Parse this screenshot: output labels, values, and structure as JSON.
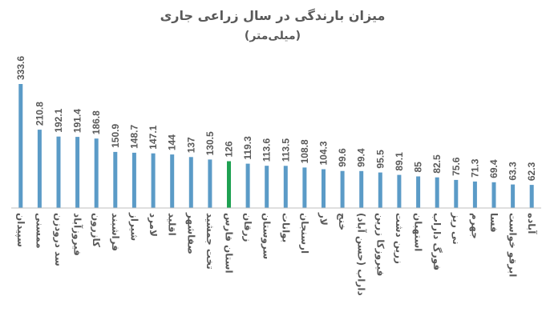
{
  "chart_data": {
    "type": "bar",
    "title": "میزان بارندگی در سال زراعی جاری",
    "subtitle": "(میلی‌متر)",
    "categories": [
      "سپیدان",
      "ممسنی",
      "سد درودزن",
      "فیروزآباد",
      "کازرون",
      "فراشبند",
      "شیراز",
      "لامرد",
      "اقلید",
      "صفاشهر",
      "تخت جمشید",
      "استان فارس",
      "زرقان",
      "سروستان",
      "بوانات",
      "ارسنجان",
      "لار",
      "خنج",
      "داراب (حسن آباد)",
      "فیروزکا زرین",
      "زرین دشت",
      "استهبان",
      "فورگ داراب",
      "نی ریز",
      "جهرم",
      "فسا",
      "ابرقو خواست",
      "آباده"
    ],
    "categories_display": [
      "سپیدان",
      "ممسنی",
      "سد درودزن",
      "فیروزآباد",
      "کازرون",
      "فراشبند",
      "شیراز",
      "لامرد",
      "اقلید",
      "صفاشهر",
      "تخت جمشید",
      "استان فارس",
      "زرقان",
      "سروستان",
      "بوانات",
      "ارسنجان",
      "لار",
      "خنج",
      "داراب (حسن آباد)",
      "فیروزکا زرین",
      "زرین دشت",
      "استهبان",
      "فورگ داراب",
      "نی ریز",
      "جهرم",
      "فسا",
      "ابرقو خواست",
      "آباده"
    ],
    "values": [
      333.6,
      210.8,
      192.1,
      191.4,
      186.8,
      150.9,
      148.7,
      147.1,
      144,
      137,
      130.5,
      126,
      119.3,
      113.6,
      113.5,
      108.8,
      104.3,
      99.6,
      99.4,
      95.5,
      89.1,
      85,
      82.5,
      75.6,
      71.3,
      69.4,
      63.3,
      62.3
    ],
    "value_labels": [
      "333.6",
      "210.8",
      "192.1",
      "191.4",
      "186.8",
      "150.9",
      "148.7",
      "147.1",
      "144",
      "137",
      "130.5",
      "126",
      "119.3",
      "113.6",
      "113.5",
      "108.8",
      "104.3",
      "99.6",
      "99.4",
      "95.5",
      "89.1",
      "85",
      "82.5",
      "75.6",
      "71.3",
      "69.4",
      "63.3",
      "62.3"
    ],
    "highlight_category": "استان فارس",
    "colors": {
      "bar": "#5b9bc7",
      "highlight": "#1fa152",
      "text": "#595959",
      "axis": "#bfbfbf"
    },
    "ylim": [
      0,
      350
    ],
    "grid": false,
    "legend": "none"
  }
}
